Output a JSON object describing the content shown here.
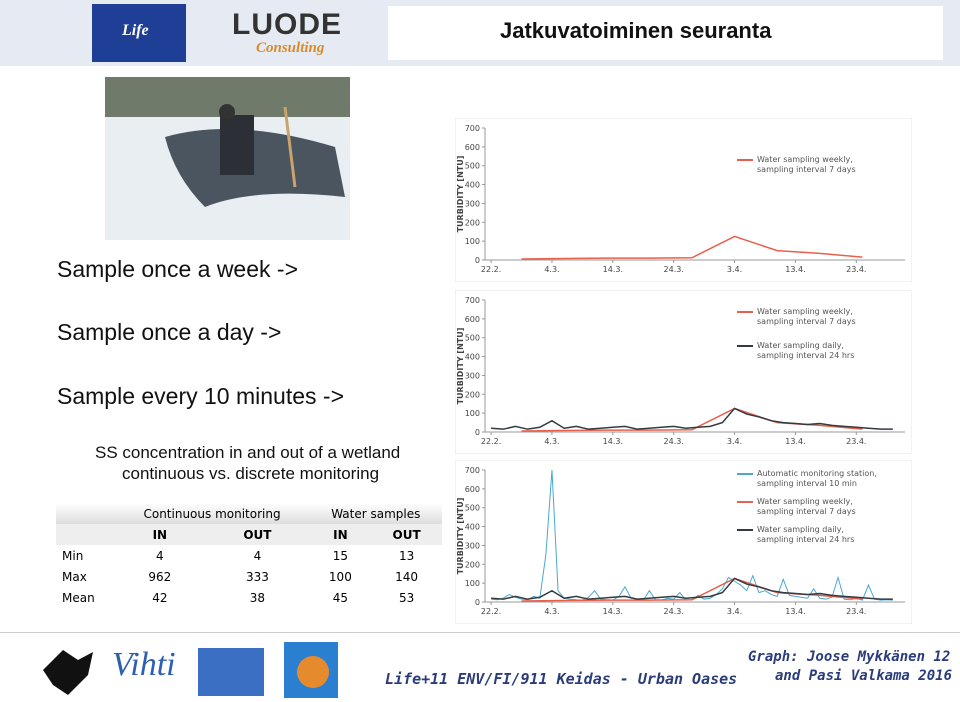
{
  "header": {
    "title": "Jatkuvatoiminen seuranta"
  },
  "logos": {
    "life": "Life",
    "luode": "LUODE",
    "consulting": "Consulting",
    "vihti": "Vihti"
  },
  "bullets": [
    "Sample once a week ->",
    "Sample once a day ->",
    "Sample every 10 minutes ->"
  ],
  "subtitle": [
    "SS concentration in and out of a wetland",
    "continuous vs. discrete monitoring"
  ],
  "table": {
    "groups": [
      "Continuous monitoring",
      "Water samples"
    ],
    "subheaders": [
      "IN",
      "OUT",
      "IN",
      "OUT"
    ],
    "rows": [
      [
        "Min",
        "4",
        "4",
        "15",
        "13"
      ],
      [
        "Max",
        "962",
        "333",
        "100",
        "140"
      ],
      [
        "Mean",
        "42",
        "38",
        "45",
        "53"
      ]
    ]
  },
  "footer": {
    "project": "Life+11 ENV/FI/911 Keidas - Urban Oases",
    "credit": [
      "Graph: Joose Mykkänen 12",
      "and Pasi Valkama 2016"
    ]
  },
  "chart_data": [
    {
      "type": "line",
      "ylabel": "TURBIDITY [NTU]",
      "xlim": [
        -1,
        68
      ],
      "ylim": [
        0,
        700
      ],
      "yticks": [
        0,
        100,
        200,
        300,
        400,
        500,
        600,
        700
      ],
      "xticks": [
        {
          "value": 0,
          "label": "22.2."
        },
        {
          "value": 10,
          "label": "4.3."
        },
        {
          "value": 20,
          "label": "14.3."
        },
        {
          "value": 30,
          "label": "24.3."
        },
        {
          "value": 40,
          "label": "3.4."
        },
        {
          "value": 50,
          "label": "13.4."
        },
        {
          "value": 60,
          "label": "23.4."
        }
      ],
      "series": [
        {
          "name": "Water sampling weekly, sampling interval 7 days",
          "color": "#e8604c",
          "x": [
            5,
            12,
            19,
            26,
            33,
            40,
            47,
            54,
            61
          ],
          "values": [
            5,
            8,
            10,
            10,
            12,
            125,
            50,
            35,
            15
          ]
        }
      ]
    },
    {
      "type": "line",
      "ylabel": "TURBIDITY [NTU]",
      "xlim": [
        -1,
        68
      ],
      "ylim": [
        0,
        700
      ],
      "yticks": [
        0,
        100,
        200,
        300,
        400,
        500,
        600,
        700
      ],
      "xticks": [
        {
          "value": 0,
          "label": "22.2."
        },
        {
          "value": 10,
          "label": "4.3."
        },
        {
          "value": 20,
          "label": "14.3."
        },
        {
          "value": 30,
          "label": "24.3."
        },
        {
          "value": 40,
          "label": "3.4."
        },
        {
          "value": 50,
          "label": "13.4."
        },
        {
          "value": 60,
          "label": "23.4."
        }
      ],
      "series": [
        {
          "name": "Water sampling weekly, sampling interval 7 days",
          "color": "#e8604c",
          "x": [
            5,
            12,
            19,
            26,
            33,
            40,
            47,
            54,
            61
          ],
          "values": [
            5,
            8,
            10,
            10,
            12,
            125,
            50,
            35,
            15
          ]
        },
        {
          "name": "Water sampling daily, sampling interval 24 hrs",
          "color": "#333a40",
          "x": [
            0,
            2,
            4,
            6,
            8,
            10,
            12,
            14,
            16,
            18,
            20,
            22,
            24,
            26,
            28,
            30,
            32,
            34,
            36,
            38,
            40,
            42,
            44,
            46,
            48,
            50,
            52,
            54,
            56,
            58,
            60,
            62,
            64,
            66
          ],
          "values": [
            20,
            15,
            30,
            15,
            25,
            60,
            20,
            30,
            15,
            20,
            25,
            30,
            15,
            20,
            25,
            30,
            20,
            25,
            30,
            50,
            125,
            95,
            80,
            60,
            50,
            45,
            40,
            45,
            35,
            30,
            25,
            20,
            15,
            15
          ]
        }
      ]
    },
    {
      "type": "line",
      "ylabel": "TURBIDITY [NTU]",
      "xlim": [
        -1,
        68
      ],
      "ylim": [
        0,
        700
      ],
      "yticks": [
        0,
        100,
        200,
        300,
        400,
        500,
        600,
        700
      ],
      "xticks": [
        {
          "value": 0,
          "label": "22.2."
        },
        {
          "value": 10,
          "label": "4.3."
        },
        {
          "value": 20,
          "label": "14.3."
        },
        {
          "value": 30,
          "label": "24.3."
        },
        {
          "value": 40,
          "label": "3.4."
        },
        {
          "value": 50,
          "label": "13.4."
        },
        {
          "value": 60,
          "label": "23.4."
        }
      ],
      "series": [
        {
          "name": "Automatic monitoring station, sampling interval 10 min",
          "color": "#4aa8d0",
          "x": [
            0,
            1,
            2,
            3,
            4,
            5,
            6,
            7,
            8,
            9,
            10,
            11,
            12,
            13,
            14,
            15,
            16,
            17,
            18,
            19,
            20,
            21,
            22,
            23,
            24,
            25,
            26,
            27,
            28,
            29,
            30,
            31,
            32,
            33,
            34,
            35,
            36,
            37,
            38,
            39,
            40,
            41,
            42,
            43,
            44,
            45,
            46,
            47,
            48,
            49,
            50,
            51,
            52,
            53,
            54,
            55,
            56,
            57,
            58,
            59,
            60,
            61,
            62,
            63,
            64,
            65,
            66
          ],
          "values": [
            15,
            12,
            20,
            40,
            25,
            15,
            12,
            30,
            20,
            250,
            700,
            60,
            20,
            15,
            12,
            10,
            25,
            60,
            15,
            12,
            10,
            30,
            80,
            20,
            15,
            10,
            60,
            12,
            10,
            20,
            15,
            50,
            10,
            12,
            35,
            15,
            20,
            40,
            70,
            130,
            110,
            90,
            60,
            140,
            50,
            60,
            40,
            30,
            120,
            35,
            30,
            25,
            20,
            70,
            20,
            15,
            25,
            130,
            15,
            12,
            20,
            10,
            90,
            15,
            10,
            12,
            10
          ]
        },
        {
          "name": "Water sampling weekly, sampling interval 7 days",
          "color": "#e8604c",
          "x": [
            5,
            12,
            19,
            26,
            33,
            40,
            47,
            54,
            61
          ],
          "values": [
            5,
            8,
            10,
            10,
            12,
            125,
            50,
            35,
            15
          ]
        },
        {
          "name": "Water sampling daily, sampling interval 24 hrs",
          "color": "#333a40",
          "x": [
            0,
            2,
            4,
            6,
            8,
            10,
            12,
            14,
            16,
            18,
            20,
            22,
            24,
            26,
            28,
            30,
            32,
            34,
            36,
            38,
            40,
            42,
            44,
            46,
            48,
            50,
            52,
            54,
            56,
            58,
            60,
            62,
            64,
            66
          ],
          "values": [
            20,
            15,
            30,
            15,
            25,
            60,
            20,
            30,
            15,
            20,
            25,
            30,
            15,
            20,
            25,
            30,
            20,
            25,
            30,
            50,
            125,
            95,
            80,
            60,
            50,
            45,
            40,
            45,
            35,
            30,
            25,
            20,
            15,
            15
          ]
        }
      ]
    }
  ]
}
